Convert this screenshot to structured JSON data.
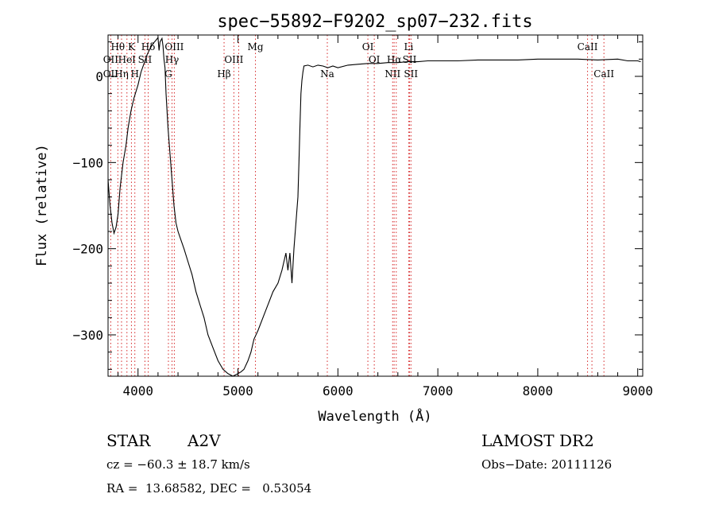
{
  "chart_data": {
    "type": "line",
    "title": "spec−55892−F9202_sp07−232.fits",
    "xlabel": "Wavelength (Å)",
    "ylabel": "Flux (relative)",
    "xlim": [
      3700,
      9050
    ],
    "ylim": [
      -348,
      48
    ],
    "xticks": [
      4000,
      5000,
      6000,
      7000,
      8000,
      9000
    ],
    "yticks": [
      0,
      -100,
      -200,
      -300
    ],
    "xtick_labels": [
      "4000",
      "5000",
      "6000",
      "7000",
      "8000",
      "9000"
    ],
    "ytick_labels": [
      "0",
      "−100",
      "−200",
      "−300"
    ],
    "grid": false,
    "series": [
      {
        "x": [
          3700,
          3720,
          3740,
          3760,
          3780,
          3800,
          3820,
          3850,
          3880,
          3900,
          3930,
          3960,
          4000,
          4030,
          4060,
          4090,
          4120,
          4150,
          4180,
          4200,
          4210,
          4220,
          4240,
          4250,
          4260,
          4270,
          4280,
          4300,
          4320,
          4340,
          4360,
          4380,
          4400,
          4430,
          4460,
          4500,
          4540,
          4580,
          4620,
          4660,
          4700,
          4750,
          4800,
          4850,
          4900,
          4950,
          5000,
          5030,
          5060,
          5100,
          5130,
          5160,
          5200,
          5250,
          5300,
          5350,
          5400,
          5440,
          5460,
          5480,
          5500,
          5520,
          5540,
          5560,
          5580,
          5600,
          5610,
          5620,
          5630,
          5640,
          5650,
          5660,
          5700,
          5750,
          5800,
          5850,
          5900,
          5950,
          6000,
          6100,
          6200,
          6300,
          6400,
          6500,
          6600,
          6700,
          6800,
          6900,
          7000,
          7200,
          7400,
          7600,
          7800,
          8000,
          8200,
          8400,
          8600,
          8800,
          8900,
          9000,
          9030
        ],
        "y": [
          -120,
          -150,
          -170,
          -182,
          -175,
          -160,
          -130,
          -100,
          -80,
          -60,
          -40,
          -25,
          -10,
          5,
          15,
          25,
          32,
          38,
          42,
          45,
          30,
          40,
          44,
          35,
          20,
          10,
          -20,
          -60,
          -90,
          -120,
          -150,
          -170,
          -180,
          -190,
          -200,
          -215,
          -230,
          -250,
          -265,
          -280,
          -300,
          -315,
          -330,
          -340,
          -345,
          -348,
          -345,
          -343,
          -340,
          -330,
          -320,
          -305,
          -295,
          -280,
          -265,
          -250,
          -240,
          -225,
          -215,
          -205,
          -225,
          -205,
          -240,
          -200,
          -170,
          -140,
          -100,
          -60,
          -20,
          -5,
          5,
          12,
          13,
          11,
          13,
          12,
          10,
          12,
          10,
          13,
          14,
          15,
          15,
          16,
          16,
          17,
          17,
          18,
          18,
          18,
          19,
          19,
          19,
          20,
          20,
          20,
          19,
          20,
          18,
          18,
          17
        ]
      }
    ],
    "lines": [
      {
        "label": "OII",
        "wl": 3727
      },
      {
        "label": "Hθ",
        "wl": 3798
      },
      {
        "label": "Hη",
        "wl": 3835
      },
      {
        "label": "HeI",
        "wl": 3889
      },
      {
        "label": "K",
        "wl": 3934
      },
      {
        "label": "H",
        "wl": 3968
      },
      {
        "label": "SII",
        "wl": 4069
      },
      {
        "label": "Hδ",
        "wl": 4102
      },
      {
        "label": "G",
        "wl": 4304
      },
      {
        "label": "Hγ",
        "wl": 4340
      },
      {
        "label": "OIII",
        "wl": 4363
      },
      {
        "label": "Hβ",
        "wl": 4861
      },
      {
        "label": "OIII",
        "wl": 4959
      },
      {
        "label": "OIII",
        "wl": 5007
      },
      {
        "label": "Mg",
        "wl": 5175
      },
      {
        "label": "Na",
        "wl": 5894
      },
      {
        "label": "OI",
        "wl": 6300
      },
      {
        "label": "OI",
        "wl": 6364
      },
      {
        "label": "NII",
        "wl": 6548
      },
      {
        "label": "Hα",
        "wl": 6563
      },
      {
        "label": "NII",
        "wl": 6584
      },
      {
        "label": "Li",
        "wl": 6708
      },
      {
        "label": "SII",
        "wl": 6717
      },
      {
        "label": "SII",
        "wl": 6731
      },
      {
        "label": "CaII",
        "wl": 8498
      },
      {
        "label": "CaII",
        "wl": 8542
      },
      {
        "label": "CaII",
        "wl": 8662
      }
    ],
    "line_labels": [
      {
        "text": "Hθ",
        "wl": 3798,
        "row": 1
      },
      {
        "text": "K",
        "wl": 3934,
        "row": 1
      },
      {
        "text": "Hδ",
        "wl": 4102,
        "row": 1
      },
      {
        "text": "OIII",
        "wl": 4363,
        "row": 1
      },
      {
        "text": "Mg",
        "wl": 5175,
        "row": 1
      },
      {
        "text": "OI",
        "wl": 6300,
        "row": 1
      },
      {
        "text": "Li",
        "wl": 6708,
        "row": 1
      },
      {
        "text": "CaII",
        "wl": 8498,
        "row": 1
      },
      {
        "text": "OII",
        "wl": 3727,
        "row": 2
      },
      {
        "text": "HeI",
        "wl": 3889,
        "row": 2
      },
      {
        "text": "SII",
        "wl": 4069,
        "row": 2
      },
      {
        "text": "Hγ",
        "wl": 4340,
        "row": 2
      },
      {
        "text": "OIII",
        "wl": 4959,
        "row": 2
      },
      {
        "text": "OI",
        "wl": 6364,
        "row": 2
      },
      {
        "text": "Hα",
        "wl": 6563,
        "row": 2
      },
      {
        "text": "SII",
        "wl": 6717,
        "row": 2
      },
      {
        "text": "OII",
        "wl": 3727,
        "row": 3
      },
      {
        "text": "Hη",
        "wl": 3835,
        "row": 3
      },
      {
        "text": "H",
        "wl": 3968,
        "row": 3
      },
      {
        "text": "G",
        "wl": 4304,
        "row": 3
      },
      {
        "text": "Hβ",
        "wl": 4861,
        "row": 3
      },
      {
        "text": "Na",
        "wl": 5894,
        "row": 3
      },
      {
        "text": "NII",
        "wl": 6548,
        "row": 3
      },
      {
        "text": "SII",
        "wl": 6731,
        "row": 3
      },
      {
        "text": "CaII",
        "wl": 8662,
        "row": 3
      }
    ],
    "colors": {
      "spectrum": "#000000",
      "lines": "#d62728",
      "axes": "#000000"
    }
  },
  "info": {
    "object_class": "STAR",
    "subclass": "A2V",
    "survey": "LAMOST DR2",
    "cz": "cz = −60.3 ± 18.7 km/s",
    "obs_date": "Obs−Date: 20111126",
    "radec": "RA =  13.68582, DEC =   0.53054"
  }
}
